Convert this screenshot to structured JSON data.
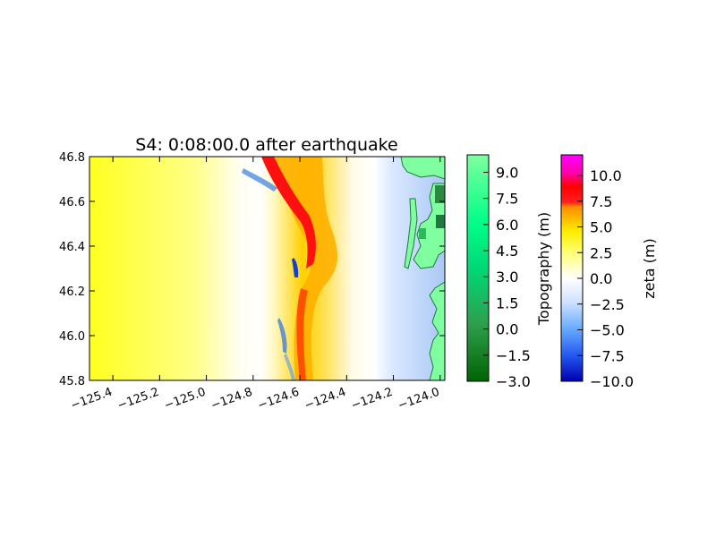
{
  "chart_data": {
    "type": "heatmap",
    "title": "S4: 0:08:00.0 after earthquake",
    "xlabel": "",
    "ylabel": "",
    "xlim": [
      -125.5,
      -123.98
    ],
    "ylim": [
      45.8,
      46.8
    ],
    "x_ticks": [
      -125.4,
      -125.2,
      -125.0,
      -124.8,
      -124.6,
      -124.4,
      -124.2,
      -124.0
    ],
    "y_ticks": [
      45.8,
      46.0,
      46.2,
      46.4,
      46.6,
      46.8
    ],
    "x_tick_labels": [
      "−125.4",
      "−125.2",
      "−125.0",
      "−124.8",
      "−124.6",
      "−124.4",
      "−124.2",
      "−124.0"
    ],
    "y_tick_labels": [
      "45.8",
      "46.0",
      "46.2",
      "46.4",
      "46.6",
      "46.8"
    ],
    "colorbars": [
      {
        "label": "Topography (m)",
        "range": [
          -3.0,
          10.0
        ],
        "ticks": [
          9.0,
          7.5,
          6.0,
          4.5,
          3.0,
          1.5,
          0.0,
          -1.5,
          -3.0
        ],
        "tick_labels": [
          "9.0",
          "7.5",
          "6.0",
          "4.5",
          "3.0",
          "1.5",
          "0.0",
          "−1.5",
          "−3.0"
        ],
        "colors": [
          "#7fff9f",
          "#00ff80",
          "#2eb85c",
          "#006400"
        ]
      },
      {
        "label": "zeta (m)",
        "range": [
          -10.0,
          12.0
        ],
        "ticks": [
          10.0,
          7.5,
          5.0,
          2.5,
          0.0,
          -2.5,
          -5.0,
          -7.5,
          -10.0
        ],
        "tick_labels": [
          "10.0",
          "7.5",
          "5.0",
          "2.5",
          "0.0",
          "−2.5",
          "−5.0",
          "−7.5",
          "−10.0"
        ],
        "colors": [
          "#ff00ff",
          "#ff0000",
          "#ff8c00",
          "#ffff00",
          "#ffffff",
          "#66aaff",
          "#0000cc"
        ]
      }
    ],
    "wave_front_lon_approx": -124.55,
    "coast_lon_approx": -124.05
  }
}
